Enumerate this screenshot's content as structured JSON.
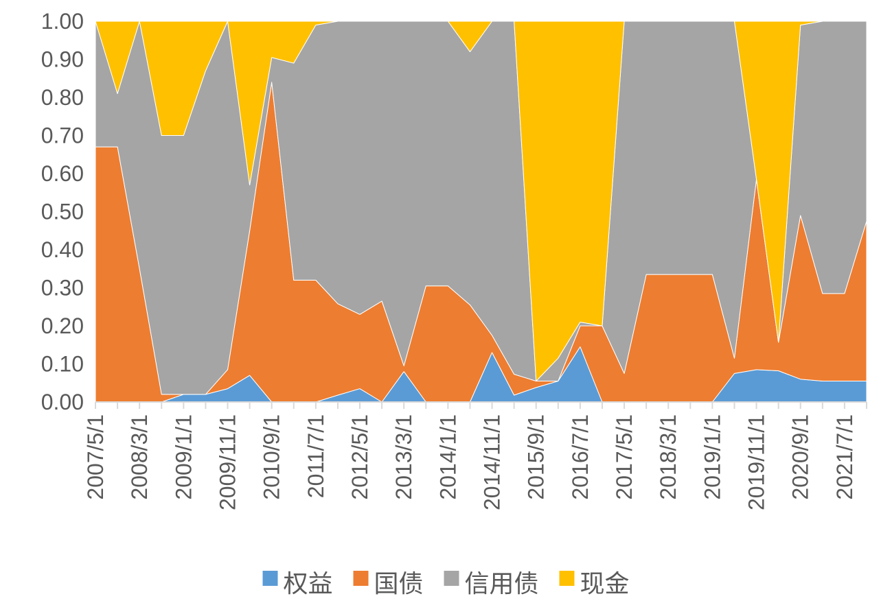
{
  "chart_data": {
    "type": "area",
    "stacked": "percent",
    "title": "",
    "xlabel": "",
    "ylabel": "",
    "ylim": [
      0,
      1
    ],
    "yticks": [
      "0.00",
      "0.10",
      "0.20",
      "0.30",
      "0.40",
      "0.50",
      "0.60",
      "0.70",
      "0.80",
      "0.90",
      "1.00"
    ],
    "x_tick_labels": [
      "2007/5/1",
      "2008/3/1",
      "2009/1/1",
      "2009/11/1",
      "2010/9/1",
      "2011/7/1",
      "2012/5/1",
      "2013/3/1",
      "2014/1/1",
      "2014/11/1",
      "2015/9/1",
      "2016/7/1",
      "2017/5/1",
      "2018/3/1",
      "2019/1/1",
      "2019/11/1",
      "2020/9/1",
      "2021/7/1"
    ],
    "x": [
      "2007/5/1",
      "2007/10/1",
      "2008/3/1",
      "2008/8/1",
      "2009/1/1",
      "2009/6/1",
      "2009/11/1",
      "2010/4/1",
      "2010/9/1",
      "2011/2/1",
      "2011/7/1",
      "2011/12/1",
      "2012/5/1",
      "2012/10/1",
      "2013/3/1",
      "2013/8/1",
      "2014/1/1",
      "2014/6/1",
      "2014/11/1",
      "2015/4/1",
      "2015/9/1",
      "2016/2/1",
      "2016/7/1",
      "2016/12/1",
      "2017/5/1",
      "2017/10/1",
      "2018/3/1",
      "2018/8/1",
      "2019/1/1",
      "2019/6/1",
      "2019/11/1",
      "2020/4/1",
      "2020/9/1",
      "2021/2/1",
      "2021/7/1",
      "2021/11/1"
    ],
    "series": [
      {
        "name": "权益",
        "color": "#5B9BD5",
        "values": [
          0.0,
          0.0,
          0.0,
          0.0,
          0.02,
          0.02,
          0.035,
          0.07,
          0.0,
          0.0,
          0.0,
          0.018,
          0.035,
          0.0,
          0.08,
          0.0,
          0.0,
          0.0,
          0.13,
          0.018,
          0.038,
          0.055,
          0.145,
          0.0,
          0.0,
          0.0,
          0.0,
          0.0,
          0.0,
          0.075,
          0.085,
          0.082,
          0.06,
          0.055,
          0.055,
          0.055
        ]
      },
      {
        "name": "国债",
        "color": "#ED7D31",
        "values": [
          0.67,
          0.67,
          0.35,
          0.02,
          0.0,
          0.0,
          0.05,
          0.38,
          0.84,
          0.32,
          0.32,
          0.24,
          0.195,
          0.265,
          0.015,
          0.305,
          0.305,
          0.255,
          0.045,
          0.055,
          0.017,
          0.0,
          0.055,
          0.2,
          0.075,
          0.335,
          0.335,
          0.335,
          0.335,
          0.04,
          0.5,
          0.075,
          0.43,
          0.23,
          0.23,
          0.42
        ]
      },
      {
        "name": "信用债",
        "color": "#A5A5A5",
        "values": [
          0.33,
          0.14,
          0.65,
          0.68,
          0.68,
          0.85,
          0.915,
          0.12,
          0.065,
          0.57,
          0.67,
          0.742,
          0.77,
          0.735,
          0.905,
          0.695,
          0.695,
          0.665,
          0.825,
          0.927,
          0.0,
          0.06,
          0.01,
          0.0,
          0.925,
          0.665,
          0.665,
          0.665,
          0.665,
          0.885,
          0.0,
          0.0,
          0.5,
          0.715,
          0.715,
          0.525
        ]
      },
      {
        "name": "现金",
        "color": "#FFC000",
        "values": [
          0.0,
          0.19,
          0.0,
          0.3,
          0.3,
          0.13,
          0.0,
          0.43,
          0.095,
          0.11,
          0.01,
          0.0,
          0.0,
          0.0,
          0.0,
          0.0,
          0.0,
          0.08,
          0.0,
          0.0,
          0.945,
          0.885,
          0.79,
          0.8,
          0.0,
          0.0,
          0.0,
          0.0,
          0.0,
          0.0,
          0.415,
          0.843,
          0.01,
          0.0,
          0.0,
          0.0
        ]
      }
    ],
    "legend_position": "bottom",
    "grid": false
  }
}
